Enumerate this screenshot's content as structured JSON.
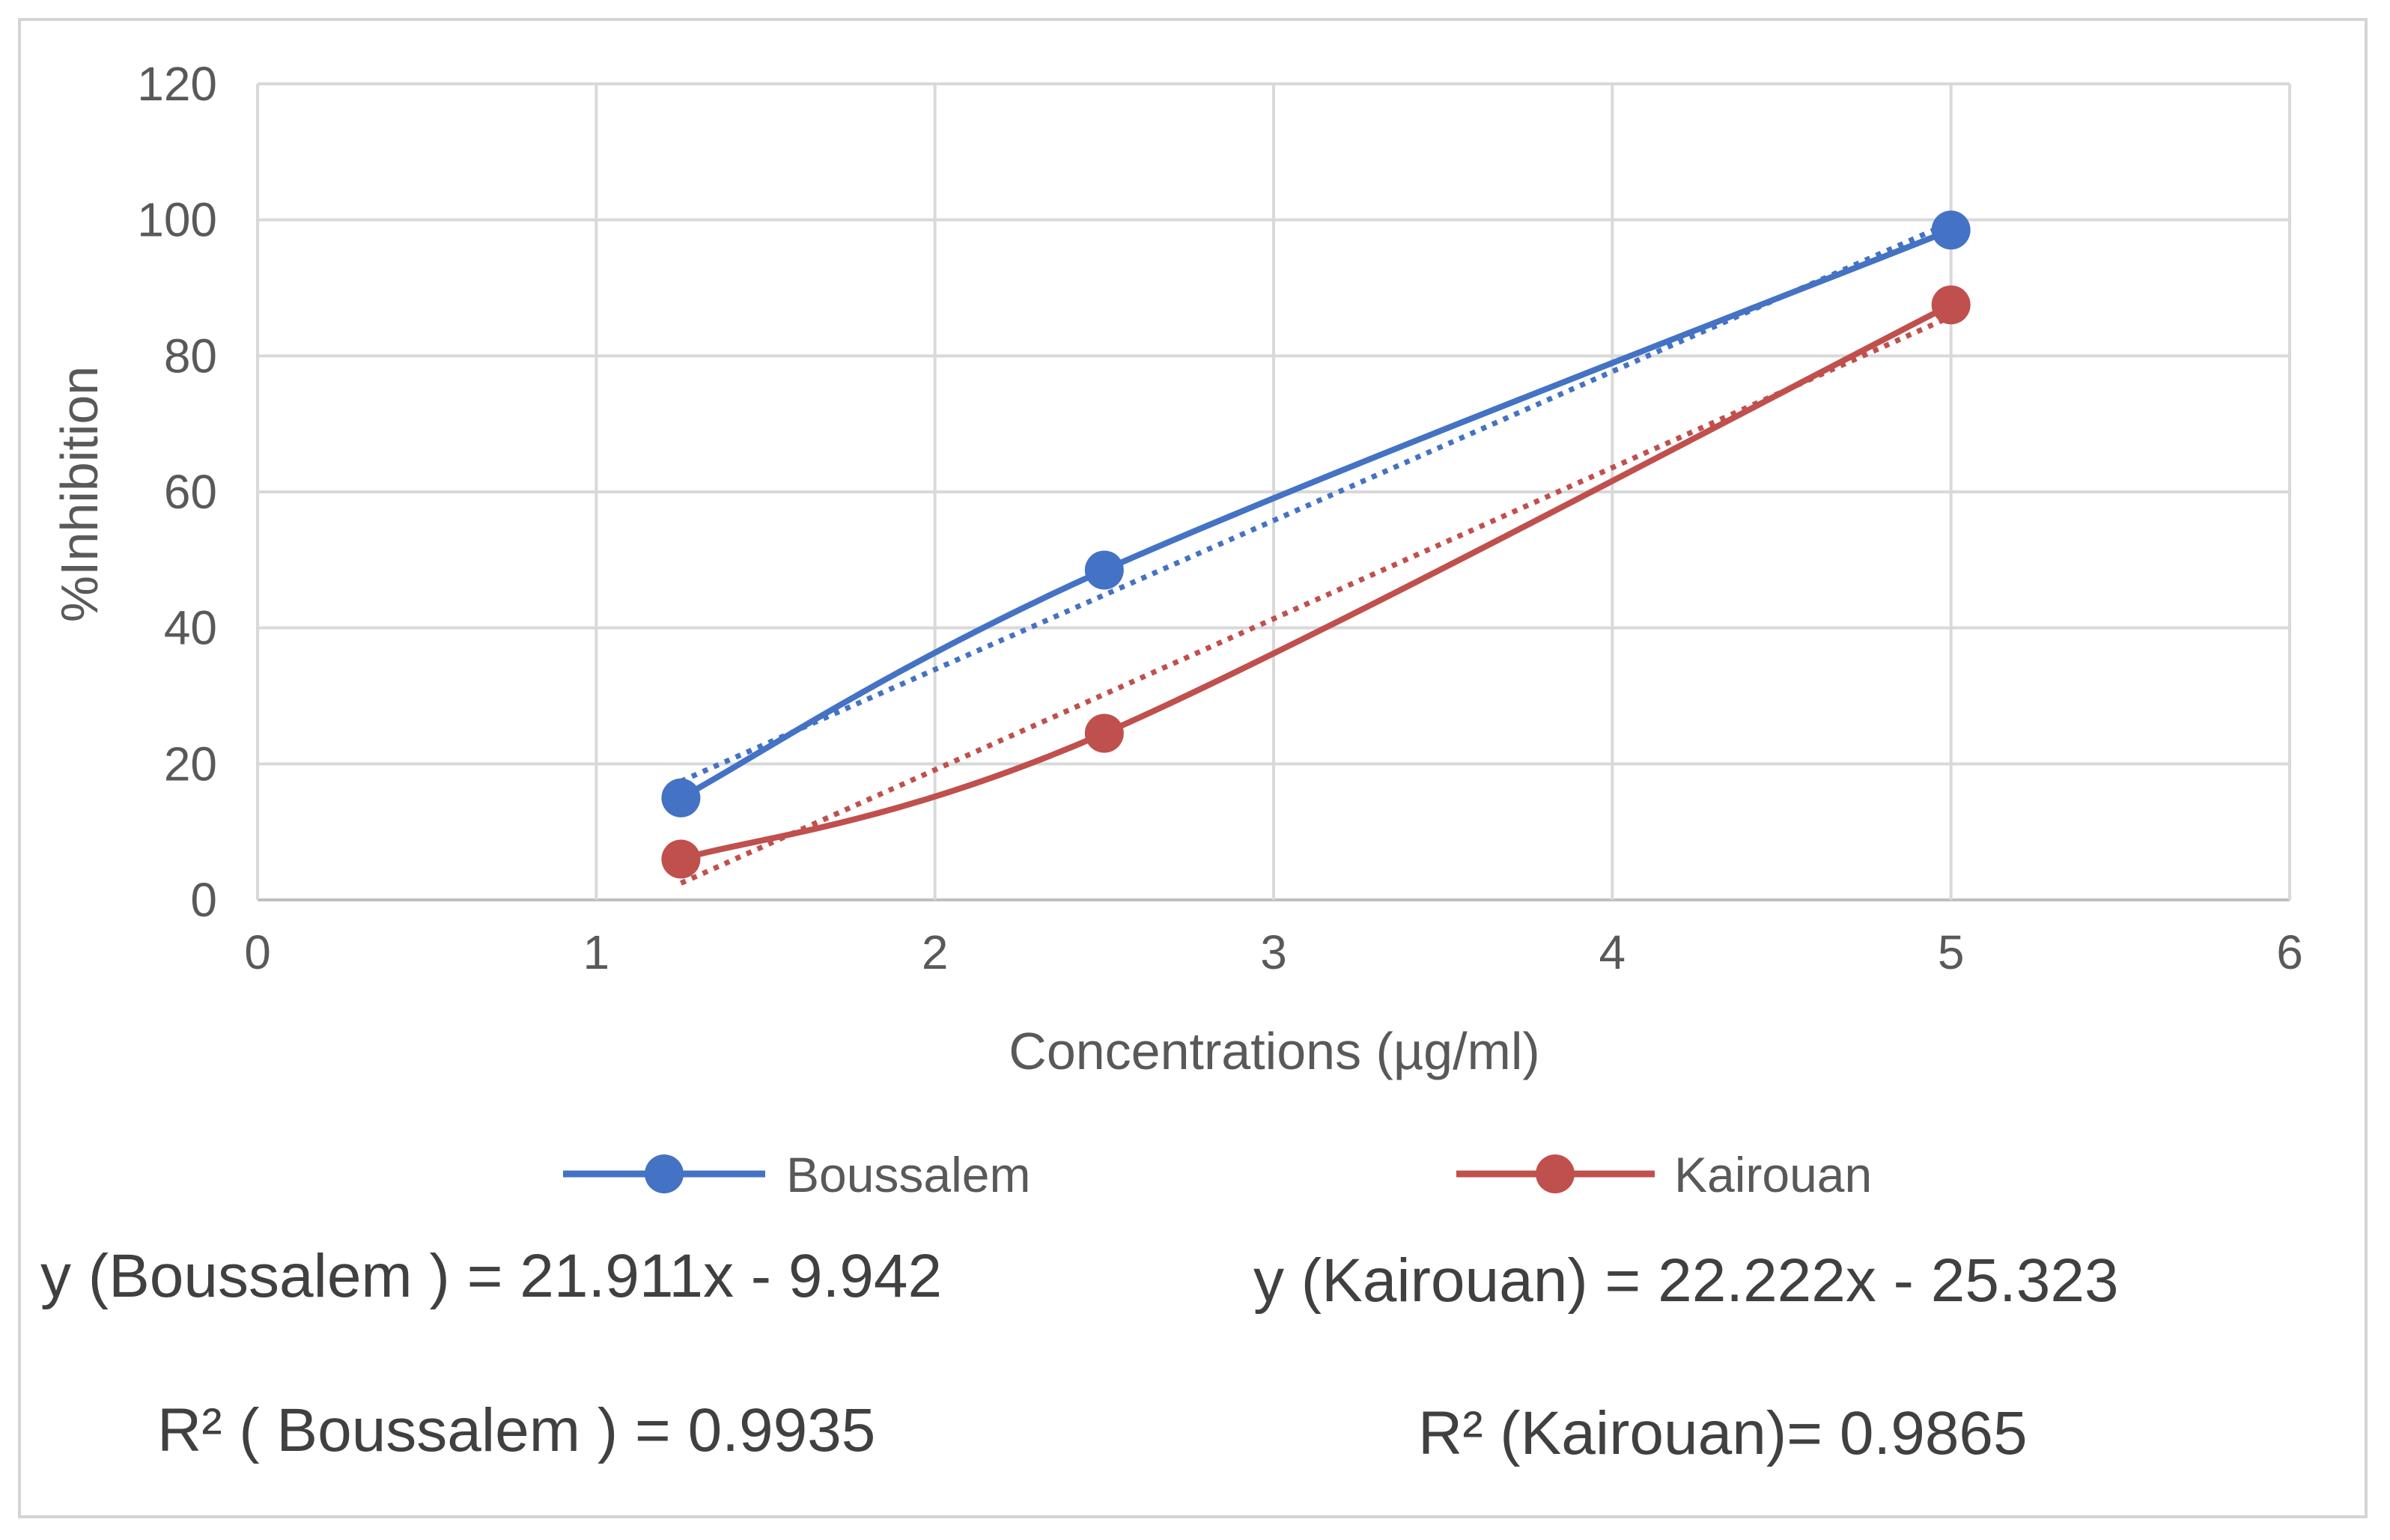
{
  "chart_data": {
    "type": "line",
    "xlabel": "Concentrations (µg/ml)",
    "ylabel": "%Inhibition",
    "xlim": [
      0,
      6
    ],
    "ylim": [
      0,
      120
    ],
    "xticks": [
      0,
      1,
      2,
      3,
      4,
      5,
      6
    ],
    "yticks": [
      0,
      20,
      40,
      60,
      80,
      100,
      120
    ],
    "grid": true,
    "legend_position": "bottom",
    "x": [
      1.25,
      2.5,
      5
    ],
    "series": [
      {
        "name": "Boussalem",
        "color": "#4472c4",
        "values": [
          15,
          48.5,
          98.5
        ],
        "trendline": {
          "slope": 21.911,
          "intercept": -9.942
        }
      },
      {
        "name": "Kairouan",
        "color": "#c0504d",
        "values": [
          6,
          24.5,
          87.5
        ],
        "trendline": {
          "slope": 22.222,
          "intercept": -25.323
        }
      }
    ],
    "annotations": {
      "eq_boussalem": "y (Boussalem ) = 21.911x - 9.942",
      "eq_kairouan": "y (Kairouan) = 22.222x - 25.323",
      "r2_boussalem": "R² ( Boussalem ) = 0.9935",
      "r2_kairouan": "R² (Kairouan)= 0.9865"
    }
  }
}
